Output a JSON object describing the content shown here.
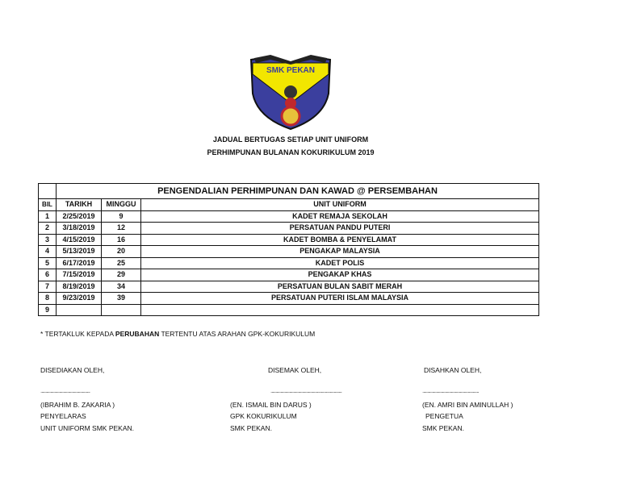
{
  "logo": {
    "text": "SMK PEKAN",
    "colors": {
      "shield": "#3b3f9e",
      "band": "#f2e600",
      "accent": "#c0282d"
    }
  },
  "titles": [
    "JADUAL BERTUGAS SETIAP UNIT UNIFORM",
    "PERHIMPUNAN BULANAN KOKURIKULUM 2019"
  ],
  "table": {
    "title": "PENGENDALIAN PERHIMPUNAN DAN KAWAD @ PERSEMBAHAN",
    "headers": [
      "BIL",
      "TARIKH",
      "MINGGU",
      "UNIT UNIFORM"
    ],
    "rows": [
      [
        "1",
        "2/25/2019",
        "9",
        "KADET REMAJA SEKOLAH"
      ],
      [
        "2",
        "3/18/2019",
        "12",
        "PERSATUAN PANDU PUTERI"
      ],
      [
        "3",
        "4/15/2019",
        "16",
        "KADET BOMBA & PENYELAMAT"
      ],
      [
        "4",
        "5/13/2019",
        "20",
        "PENGAKAP MALAYSIA"
      ],
      [
        "5",
        "6/17/2019",
        "25",
        "KADET POLIS"
      ],
      [
        "6",
        "7/15/2019",
        "29",
        "PENGAKAP KHAS"
      ],
      [
        "7",
        "8/19/2019",
        "34",
        "PERSATUAN BULAN SABIT MERAH"
      ],
      [
        "8",
        "9/23/2019",
        "39",
        "PERSATUAN PUTERI ISLAM MALAYSIA"
      ],
      [
        "9",
        "",
        "",
        ""
      ]
    ]
  },
  "note": {
    "prefix": "* TERTAKLUK KEPADA ",
    "bold": "PERUBAHAN",
    "suffix": " TERTENTU ATAS ARAHAN GPK-KOKURIKULUM"
  },
  "signatures": [
    {
      "label": "DISEDIAKAN OLEH,",
      "dots": "..................................................",
      "name": "(IBRAHIM B. ZAKARIA )",
      "role": "PENYELARAS",
      "org": "UNIT UNIFORM SMK PEKAN."
    },
    {
      "label": "DISEMAK OLEH,",
      "dots": "........................................................................",
      "name": "(EN. ISMAIL BIN DARUS )",
      "role": "GPK KOKURIKULUM",
      "org": "SMK PEKAN."
    },
    {
      "label": "DISAHKAN OLEH,",
      "dots": ".........................................................",
      "name": "(EN. AMRI BIN AMINULLAH )",
      "role": "PENGETUA",
      "org": "SMK PEKAN."
    }
  ]
}
